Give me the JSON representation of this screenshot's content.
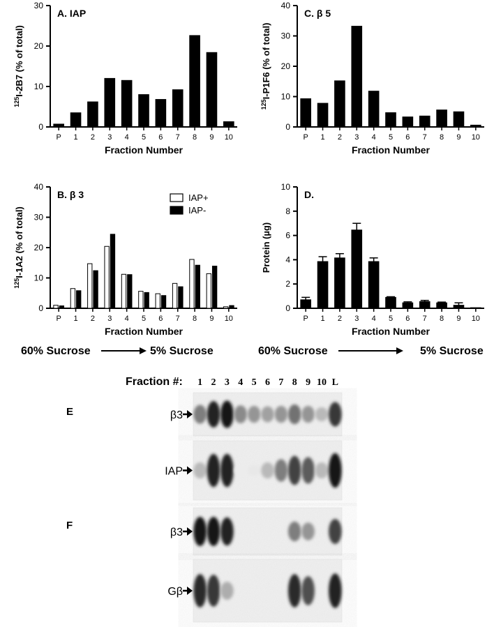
{
  "figure": {
    "sucrose_gradient": {
      "left_label": "60% Sucrose",
      "right_label": "5% Sucrose"
    },
    "blots": {
      "fraction_label": "Fraction #:",
      "lanes": [
        "1",
        "2",
        "3",
        "4",
        "5",
        "6",
        "7",
        "8",
        "9",
        "10",
        "L"
      ],
      "panel_E_letter": "E",
      "panel_F_letter": "F",
      "rows": [
        {
          "label": "β3",
          "intensity": [
            0.55,
            0.95,
            1.0,
            0.5,
            0.45,
            0.4,
            0.45,
            0.6,
            0.45,
            0.3,
            0.85
          ]
        },
        {
          "label": "IAP",
          "intensity": [
            0.3,
            0.95,
            0.95,
            0.08,
            0.1,
            0.3,
            0.55,
            0.8,
            0.7,
            0.3,
            1.0
          ]
        },
        {
          "label": "β3",
          "intensity": [
            1.0,
            1.0,
            0.95,
            0.0,
            0.0,
            0.0,
            0.0,
            0.55,
            0.45,
            0.0,
            0.8
          ]
        },
        {
          "label": "Gβ",
          "intensity": [
            0.9,
            0.85,
            0.35,
            0.0,
            0.0,
            0.0,
            0.0,
            0.9,
            0.75,
            0.0,
            0.95
          ]
        }
      ]
    }
  },
  "chart_data": [
    {
      "type": "bar",
      "panel_label": "A. IAP",
      "ylabel_sup": "125",
      "ylabel": "I-2B7 (% of total)",
      "xlabel": "Fraction Number",
      "categories": [
        "P",
        "1",
        "2",
        "3",
        "4",
        "5",
        "6",
        "7",
        "8",
        "9",
        "10"
      ],
      "series": [
        {
          "values": [
            0.7,
            3.5,
            6.2,
            12.0,
            11.5,
            8.0,
            6.8,
            9.2,
            22.6,
            18.4,
            1.3
          ]
        }
      ],
      "ylim": [
        0,
        30
      ],
      "yticks": [
        "0",
        "10",
        "20",
        "30"
      ]
    },
    {
      "type": "bar",
      "panel_label": "C. β 5",
      "ylabel_sup": "125",
      "ylabel": "I-P1F6 (% of total)",
      "xlabel": "Fraction Number",
      "categories": [
        "P",
        "1",
        "2",
        "3",
        "4",
        "5",
        "6",
        "7",
        "8",
        "9",
        "10"
      ],
      "series": [
        {
          "values": [
            9.3,
            7.8,
            15.2,
            33.2,
            11.8,
            4.7,
            3.3,
            3.6,
            5.6,
            5.0,
            0.6
          ]
        }
      ],
      "ylim": [
        0,
        40
      ],
      "yticks": [
        "0",
        "10",
        "20",
        "30",
        "40"
      ]
    },
    {
      "type": "bar",
      "panel_label": "B. β 3",
      "ylabel_sup": "125",
      "ylabel": "I-1A2 (% of total)",
      "xlabel": "Fraction Number",
      "categories": [
        "P",
        "1",
        "2",
        "3",
        "4",
        "5",
        "6",
        "7",
        "8",
        "9",
        "10"
      ],
      "series": [
        {
          "name": "IAP+",
          "values": [
            1.0,
            6.5,
            14.7,
            20.4,
            11.2,
            5.6,
            4.8,
            8.2,
            16.1,
            11.4,
            0.5
          ]
        },
        {
          "name": "IAP-",
          "values": [
            0.8,
            5.8,
            12.4,
            24.4,
            11.1,
            5.2,
            4.2,
            7.1,
            14.2,
            13.9,
            0.9
          ]
        }
      ],
      "legend": "top-right",
      "ylim": [
        0,
        40
      ],
      "yticks": [
        "0",
        "10",
        "20",
        "30",
        "40"
      ]
    },
    {
      "type": "bar",
      "panel_label": "D.",
      "ylabel": "Protein (µg)",
      "xlabel": "Fraction Number",
      "categories": [
        "P",
        "1",
        "2",
        "3",
        "4",
        "5",
        "6",
        "7",
        "8",
        "9",
        "10"
      ],
      "series": [
        {
          "values": [
            0.7,
            3.85,
            4.15,
            6.45,
            3.85,
            0.9,
            0.45,
            0.55,
            0.45,
            0.25,
            0.05
          ],
          "errors": [
            0.2,
            0.4,
            0.35,
            0.55,
            0.3,
            0.05,
            0.08,
            0.1,
            0.06,
            0.2,
            0.0
          ]
        }
      ],
      "ylim": [
        0,
        10
      ],
      "yticks": [
        "0",
        "2",
        "4",
        "6",
        "8",
        "10"
      ]
    }
  ]
}
